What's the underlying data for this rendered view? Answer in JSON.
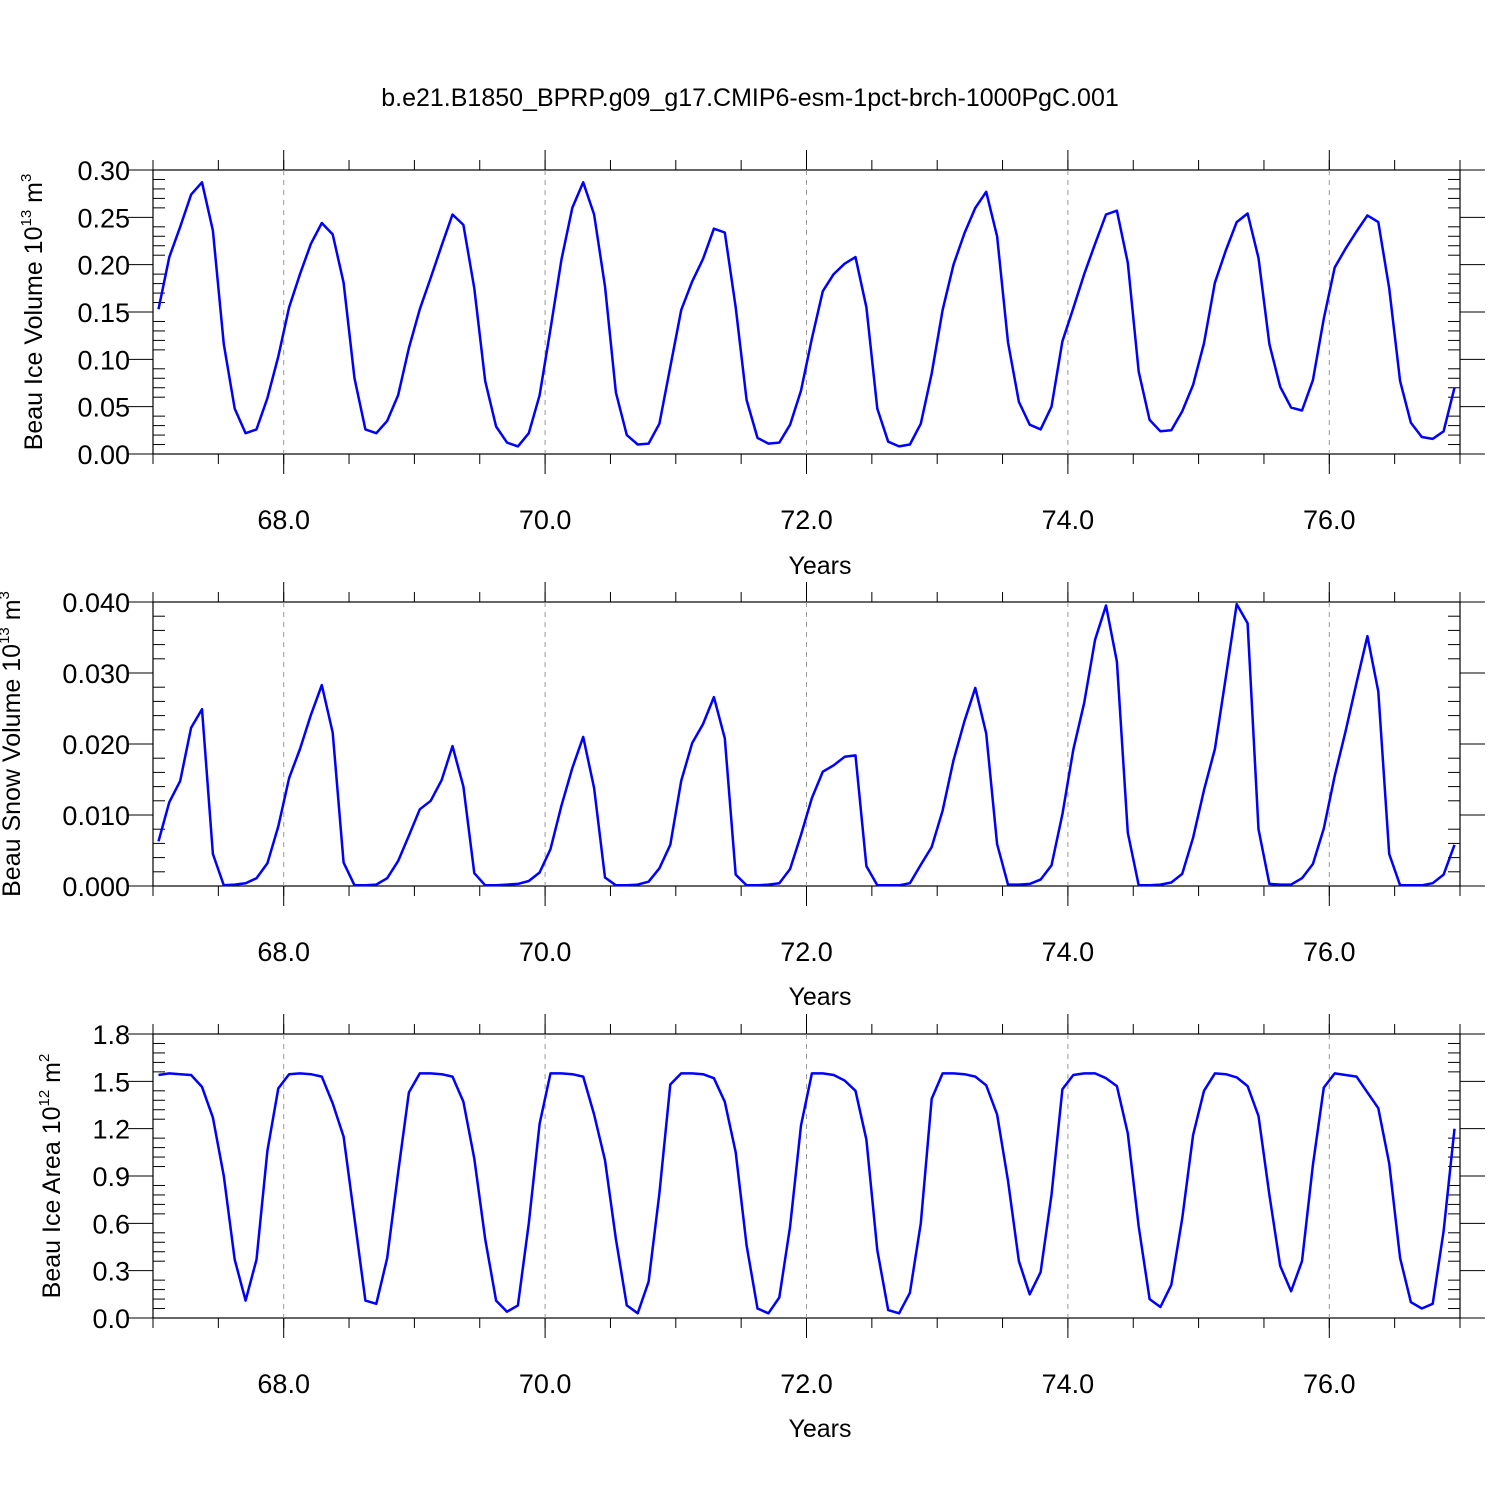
{
  "figure": {
    "title": "b.e21.B1850_BPRP.g09_g17.CMIP6-esm-1pct-brch-1000PgC.001"
  },
  "chart_data": [
    {
      "type": "line",
      "ylabel": {
        "text": "Beau Ice Volume 10",
        "exp": "13",
        "unit": "m",
        "unit_exp": "3"
      },
      "xlabel": "Years",
      "xlim": [
        67.0,
        77.0
      ],
      "ylim": [
        0.0,
        0.3
      ],
      "xticks": [
        "68.0",
        "70.0",
        "72.0",
        "74.0",
        "76.0"
      ],
      "yticks": [
        "0.00",
        "0.05",
        "0.10",
        "0.15",
        "0.20",
        "0.25",
        "0.30"
      ],
      "color": "#0000ff",
      "x_start": 67.0417,
      "x_step": 0.08333,
      "values": [
        0.153,
        0.208,
        0.24,
        0.274,
        0.287,
        0.236,
        0.116,
        0.048,
        0.022,
        0.026,
        0.059,
        0.103,
        0.155,
        0.19,
        0.222,
        0.244,
        0.232,
        0.181,
        0.08,
        0.026,
        0.022,
        0.035,
        0.062,
        0.112,
        0.153,
        0.186,
        0.22,
        0.253,
        0.242,
        0.175,
        0.077,
        0.029,
        0.012,
        0.008,
        0.022,
        0.062,
        0.132,
        0.205,
        0.26,
        0.287,
        0.253,
        0.177,
        0.065,
        0.02,
        0.01,
        0.011,
        0.032,
        0.092,
        0.152,
        0.182,
        0.206,
        0.238,
        0.234,
        0.155,
        0.057,
        0.017,
        0.011,
        0.012,
        0.031,
        0.067,
        0.122,
        0.172,
        0.19,
        0.201,
        0.208,
        0.155,
        0.048,
        0.013,
        0.008,
        0.01,
        0.032,
        0.085,
        0.152,
        0.2,
        0.233,
        0.26,
        0.277,
        0.23,
        0.118,
        0.055,
        0.031,
        0.026,
        0.05,
        0.119,
        0.154,
        0.19,
        0.222,
        0.253,
        0.257,
        0.202,
        0.087,
        0.036,
        0.024,
        0.025,
        0.045,
        0.073,
        0.117,
        0.181,
        0.215,
        0.245,
        0.254,
        0.207,
        0.116,
        0.071,
        0.049,
        0.046,
        0.078,
        0.143,
        0.197,
        0.217,
        0.235,
        0.252,
        0.245,
        0.175,
        0.077,
        0.033,
        0.018,
        0.016,
        0.024,
        0.07
      ]
    },
    {
      "type": "line",
      "ylabel": {
        "text": "Beau Snow Volume 10",
        "exp": "13",
        "unit": "m",
        "unit_exp": "3"
      },
      "xlabel": "Years",
      "xlim": [
        67.0,
        77.0
      ],
      "ylim": [
        0.0,
        0.04
      ],
      "xticks": [
        "68.0",
        "70.0",
        "72.0",
        "74.0",
        "76.0"
      ],
      "yticks": [
        "0.000",
        "0.010",
        "0.020",
        "0.030",
        "0.040"
      ],
      "color": "#0000ff",
      "x_start": 67.0417,
      "x_step": 0.08333,
      "values": [
        0.0063,
        0.0118,
        0.0148,
        0.0223,
        0.0249,
        0.0045,
        0.0001,
        0.0002,
        0.0004,
        0.0011,
        0.0032,
        0.0084,
        0.0152,
        0.0193,
        0.0241,
        0.0283,
        0.0216,
        0.0033,
        0.0001,
        0.0001,
        0.0002,
        0.0011,
        0.0035,
        0.0071,
        0.0108,
        0.012,
        0.0149,
        0.0197,
        0.014,
        0.0018,
        0.0001,
        0.0001,
        0.0002,
        0.0003,
        0.0007,
        0.0019,
        0.0052,
        0.0113,
        0.0166,
        0.021,
        0.0138,
        0.0012,
        0.0001,
        0.0001,
        0.0002,
        0.0006,
        0.0025,
        0.0058,
        0.0148,
        0.0201,
        0.0228,
        0.0266,
        0.0208,
        0.0016,
        0.0001,
        0.0001,
        0.0002,
        0.0004,
        0.0024,
        0.0072,
        0.0124,
        0.0161,
        0.017,
        0.0182,
        0.0184,
        0.0028,
        0.0001,
        0.0001,
        0.0001,
        0.0004,
        0.003,
        0.0055,
        0.0106,
        0.0177,
        0.0232,
        0.0279,
        0.0215,
        0.0059,
        0.0002,
        0.0002,
        0.0003,
        0.0009,
        0.0029,
        0.0101,
        0.0192,
        0.0258,
        0.0347,
        0.0395,
        0.0316,
        0.0075,
        0.0001,
        0.0001,
        0.0002,
        0.0005,
        0.0017,
        0.0068,
        0.0135,
        0.0193,
        0.0294,
        0.0397,
        0.037,
        0.008,
        0.0003,
        0.0002,
        0.0002,
        0.0011,
        0.0031,
        0.0081,
        0.0155,
        0.0218,
        0.0286,
        0.0352,
        0.0274,
        0.0045,
        0.0001,
        0.0001,
        0.0001,
        0.0004,
        0.0016,
        0.0058
      ]
    },
    {
      "type": "line",
      "ylabel": {
        "text": "Beau Ice Area 10",
        "exp": "12",
        "unit": "m",
        "unit_exp": "2"
      },
      "xlabel": "Years",
      "xlim": [
        67.0,
        77.0
      ],
      "ylim": [
        0.0,
        1.8
      ],
      "xticks": [
        "68.0",
        "70.0",
        "72.0",
        "74.0",
        "76.0"
      ],
      "yticks": [
        "0.0",
        "0.3",
        "0.6",
        "0.9",
        "1.2",
        "1.5",
        "1.8"
      ],
      "color": "#0000ff",
      "x_start": 67.0417,
      "x_step": 0.08333,
      "values": [
        1.54,
        1.55,
        1.545,
        1.54,
        1.465,
        1.27,
        0.9,
        0.37,
        0.11,
        0.37,
        1.06,
        1.455,
        1.545,
        1.55,
        1.545,
        1.53,
        1.36,
        1.15,
        0.63,
        0.11,
        0.09,
        0.38,
        0.92,
        1.43,
        1.55,
        1.55,
        1.545,
        1.53,
        1.37,
        1.01,
        0.5,
        0.11,
        0.04,
        0.08,
        0.6,
        1.23,
        1.55,
        1.55,
        1.545,
        1.53,
        1.29,
        1.0,
        0.5,
        0.08,
        0.03,
        0.23,
        0.79,
        1.48,
        1.55,
        1.55,
        1.545,
        1.52,
        1.37,
        1.05,
        0.46,
        0.06,
        0.03,
        0.13,
        0.58,
        1.22,
        1.55,
        1.55,
        1.54,
        1.505,
        1.44,
        1.13,
        0.43,
        0.05,
        0.03,
        0.16,
        0.6,
        1.39,
        1.55,
        1.55,
        1.545,
        1.53,
        1.475,
        1.29,
        0.87,
        0.36,
        0.15,
        0.29,
        0.78,
        1.45,
        1.54,
        1.55,
        1.55,
        1.52,
        1.47,
        1.17,
        0.58,
        0.12,
        0.07,
        0.21,
        0.63,
        1.16,
        1.44,
        1.55,
        1.545,
        1.525,
        1.47,
        1.28,
        0.78,
        0.33,
        0.17,
        0.36,
        0.97,
        1.46,
        1.55,
        1.54,
        1.53,
        1.43,
        1.33,
        0.98,
        0.38,
        0.1,
        0.06,
        0.09,
        0.55,
        1.2
      ]
    }
  ]
}
